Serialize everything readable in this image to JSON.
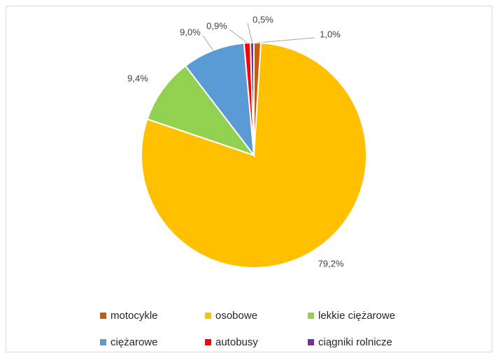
{
  "chart_data": {
    "type": "pie",
    "categories": [
      "motocykle",
      "osobowe",
      "lekkie ciężarowe",
      "ciężarowe",
      "autobusy",
      "ciągniki rolnicze"
    ],
    "values": [
      1.0,
      79.2,
      9.4,
      9.0,
      0.9,
      0.5
    ],
    "value_labels": [
      "1,0%",
      "79,2%",
      "9,4%",
      "9,0%",
      "0,9%",
      "0,5%"
    ],
    "colors": [
      "#c55a11",
      "#ffc000",
      "#92d050",
      "#5b9bd5",
      "#ff0000",
      "#7030a0"
    ],
    "legend": "bottom"
  }
}
